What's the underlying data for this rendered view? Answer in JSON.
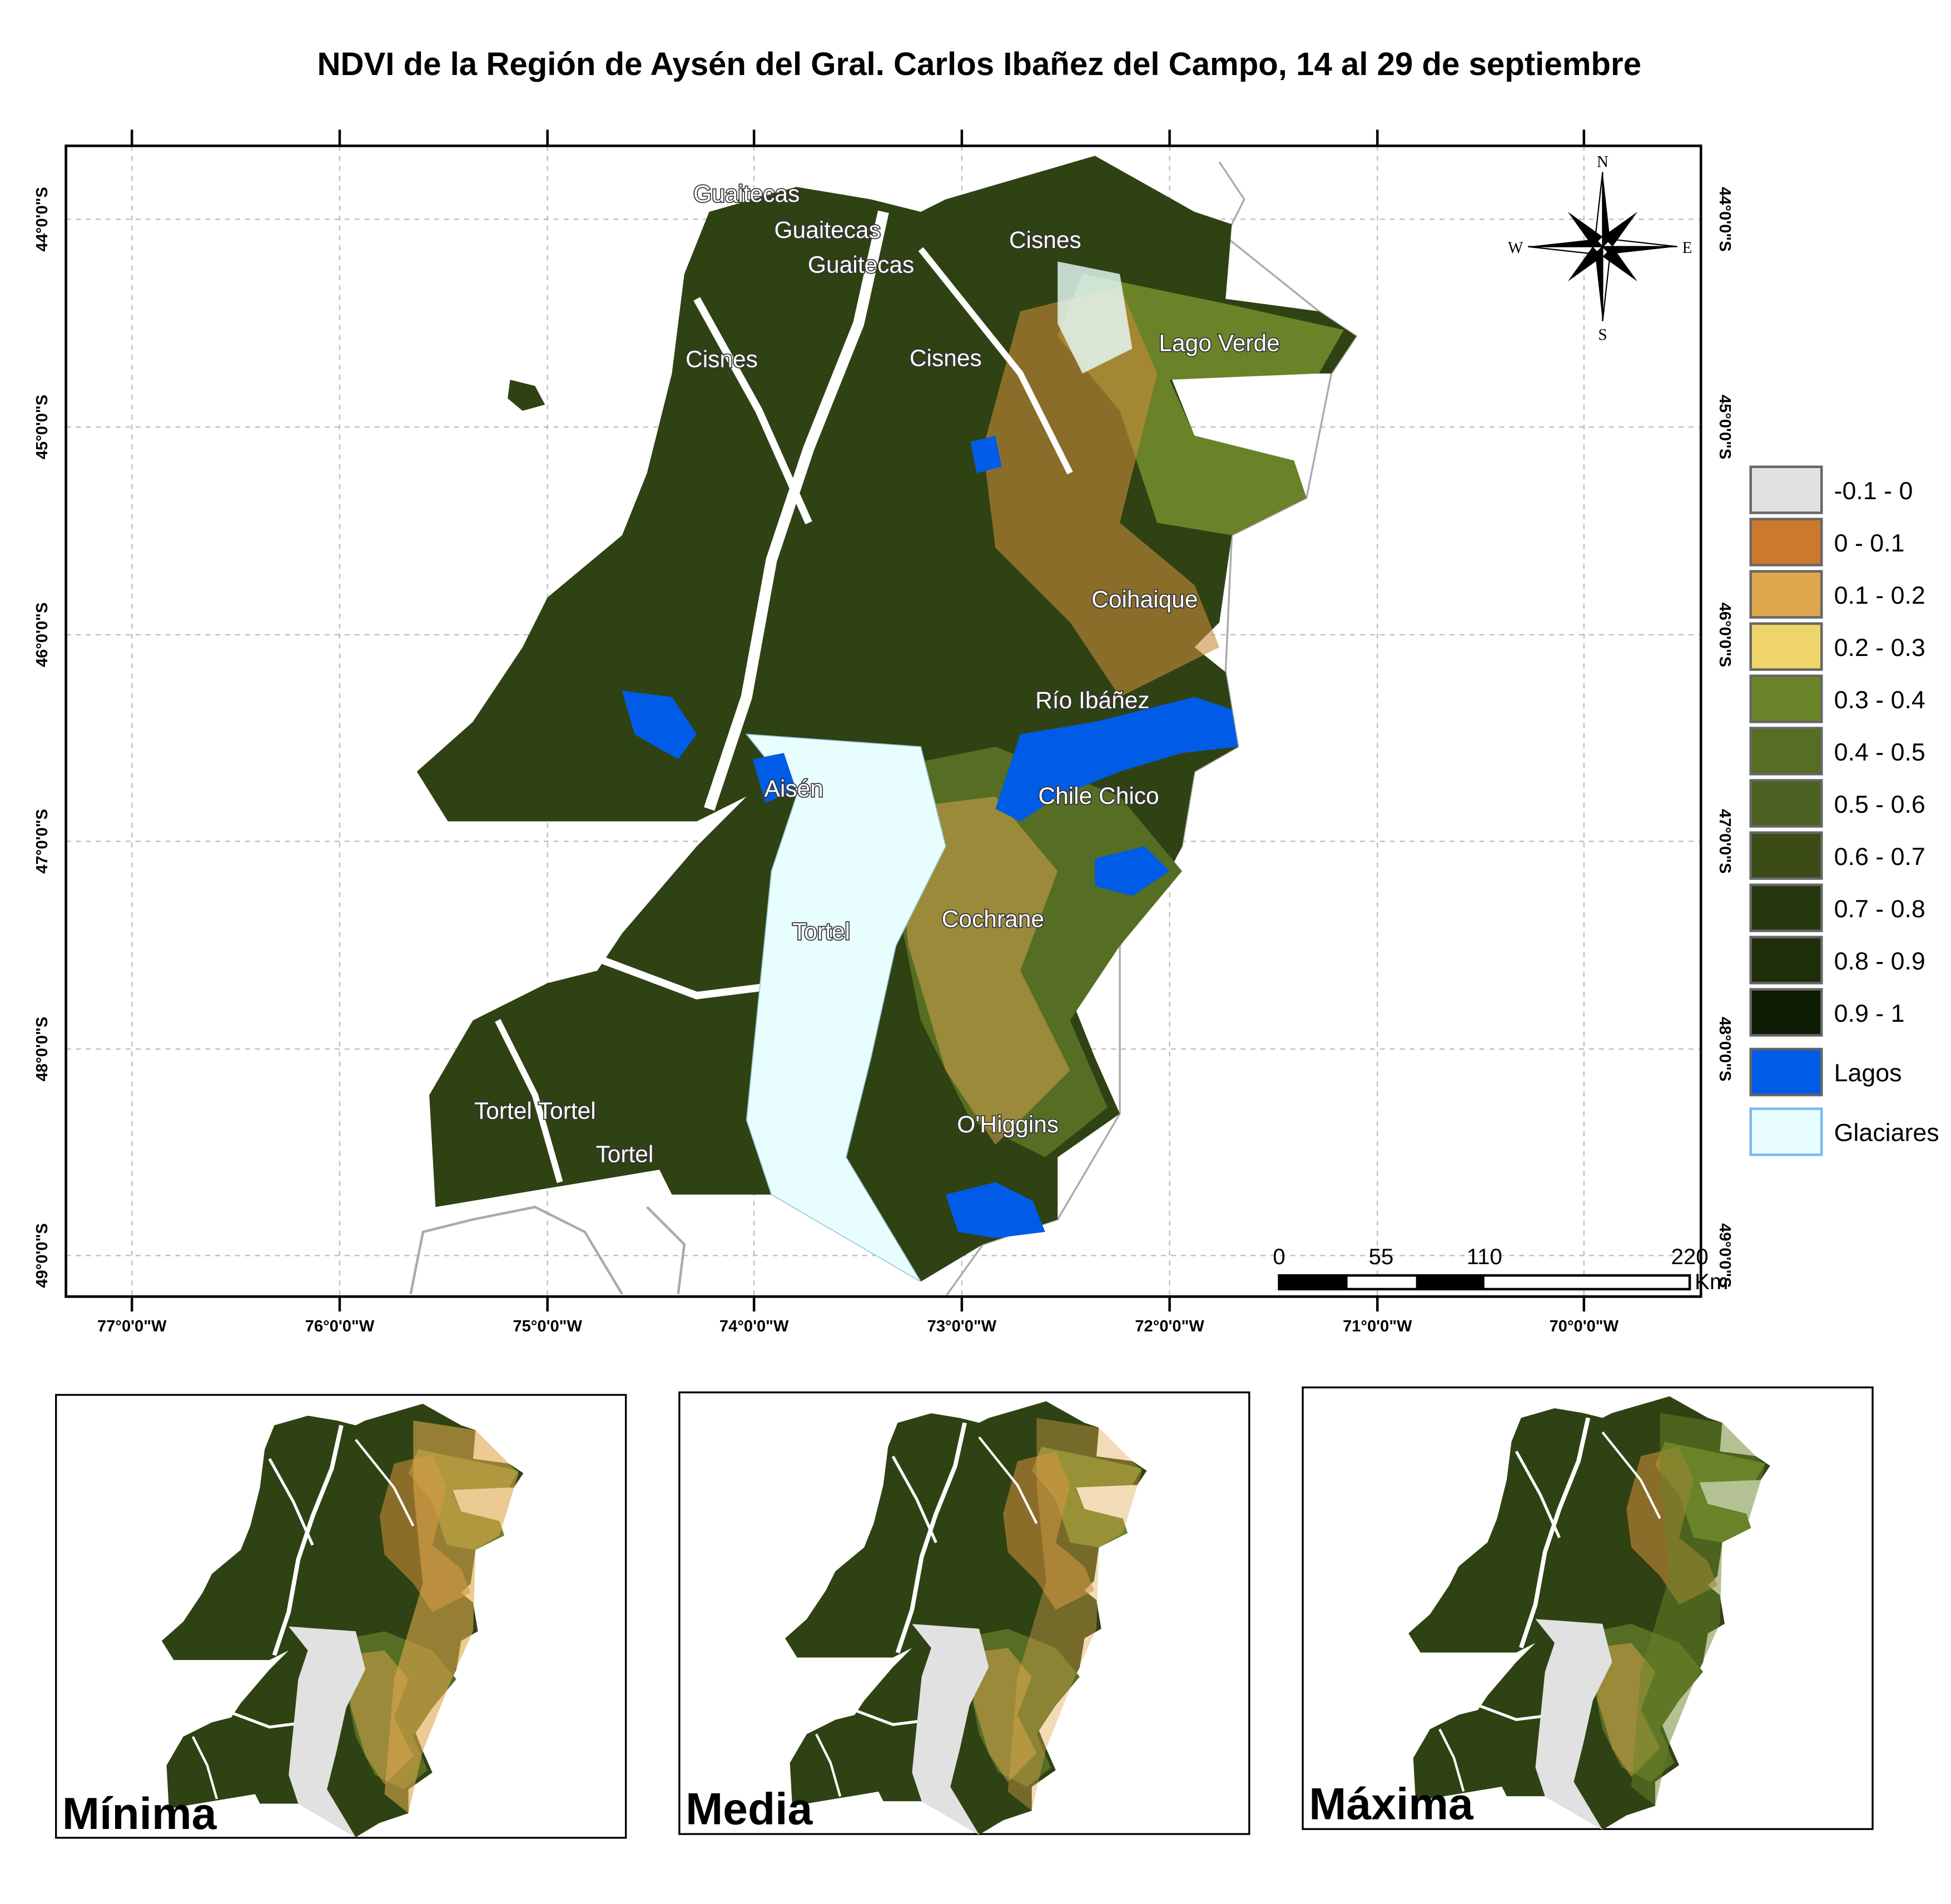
{
  "title": "NDVI de la Región de Aysén del Gral. Carlos Ibañez del Campo, 14 al 29 de septiembre",
  "lat_labels": [
    "44°0'0\"S",
    "45°0'0\"S",
    "46°0'0\"S",
    "47°0'0\"S",
    "48°0'0\"S",
    "49°0'0\"S"
  ],
  "lon_labels": [
    "77°0'0\"W",
    "76°0'0\"W",
    "75°0'0\"W",
    "74°0'0\"W",
    "73°0'0\"W",
    "72°0'0\"W",
    "71°0'0\"W",
    "70°0'0\"W"
  ],
  "places": [
    "Guaitecas",
    "Guaitecas",
    "Guaitecas",
    "Cisnes",
    "Cisnes",
    "Cisnes",
    "Lago Verde",
    "Coihaique",
    "Río Ibáñez",
    "Aisén",
    "Chile Chico",
    "Tortel",
    "Cochrane",
    "Tortel Tortel",
    "Tortel",
    "O'Higgins"
  ],
  "compass": {
    "n": "N",
    "s": "S",
    "e": "E",
    "w": "W"
  },
  "scale_bar": {
    "labels": [
      "0",
      "55",
      "110",
      "220"
    ],
    "unit": "Km"
  },
  "legend": [
    {
      "label": "-0.1 - 0",
      "color": "#e1e1e1"
    },
    {
      "label": "0 - 0.1",
      "color": "#cb792c"
    },
    {
      "label": "0.1 - 0.2",
      "color": "#dea74d"
    },
    {
      "label": "0.2 - 0.3",
      "color": "#efd36b"
    },
    {
      "label": "0.3 - 0.4",
      "color": "#6a8328"
    },
    {
      "label": "0.4 - 0.5",
      "color": "#566d24"
    },
    {
      "label": "0.5 - 0.6",
      "color": "#4d6122"
    },
    {
      "label": "0.6 - 0.7",
      "color": "#3b4c17"
    },
    {
      "label": "0.7 - 0.8",
      "color": "#27370e"
    },
    {
      "label": "0.8 - 0.9",
      "color": "#1e2e0a"
    },
    {
      "label": "0.9 - 1",
      "color": "#0f1c05"
    },
    {
      "label": "Lagos",
      "color": "#005ce6"
    },
    {
      "label": "Glaciares",
      "color": "#e8fdfd"
    }
  ],
  "insets": [
    {
      "label": "Mínima"
    },
    {
      "label": "Media"
    },
    {
      "label": "Máxima"
    }
  ]
}
